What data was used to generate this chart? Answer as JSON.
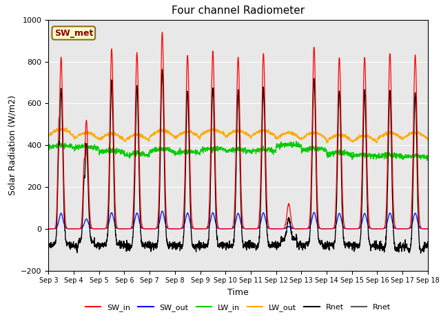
{
  "title": "Four channel Radiometer",
  "xlabel": "Time",
  "ylabel": "Solar Radiation (W/m2)",
  "ylim": [
    -200,
    1000
  ],
  "n_days": 15,
  "background_color": "#e8e8e8",
  "annotation_text": "SW_met",
  "annotation_bbox_facecolor": "#ffffcc",
  "annotation_bbox_edgecolor": "#8b6914",
  "series": {
    "SW_in": {
      "color": "#ff0000",
      "label": "SW_in"
    },
    "SW_out": {
      "color": "#0000ff",
      "label": "SW_out"
    },
    "LW_in": {
      "color": "#00cc00",
      "label": "LW_in"
    },
    "LW_out": {
      "color": "#ffaa00",
      "label": "LW_out"
    },
    "Rnet1": {
      "color": "#000000",
      "label": "Rnet"
    },
    "Rnet2": {
      "color": "#555555",
      "label": "Rnet"
    }
  },
  "tick_labels": [
    "Sep 3",
    "Sep 4",
    "Sep 5",
    "Sep 6",
    "Sep 7",
    "Sep 8",
    "Sep 9",
    "Sep 10",
    "Sep 11",
    "Sep 12",
    "Sep 13",
    "Sep 14",
    "Sep 15",
    "Sep 16",
    "Sep 17",
    "Sep 18"
  ],
  "sw_peaks": [
    820,
    520,
    860,
    840,
    940,
    830,
    850,
    820,
    840,
    120,
    870,
    820,
    820,
    840,
    830
  ],
  "lw_out_base": [
    445,
    430,
    425,
    420,
    440,
    435,
    445,
    440,
    440,
    430,
    430,
    420,
    415,
    430,
    430
  ],
  "lw_in_base": [
    390,
    385,
    365,
    350,
    370,
    360,
    375,
    370,
    370,
    395,
    375,
    355,
    345,
    345,
    340
  ],
  "night_rnet": -80,
  "pts_per_day": 144
}
